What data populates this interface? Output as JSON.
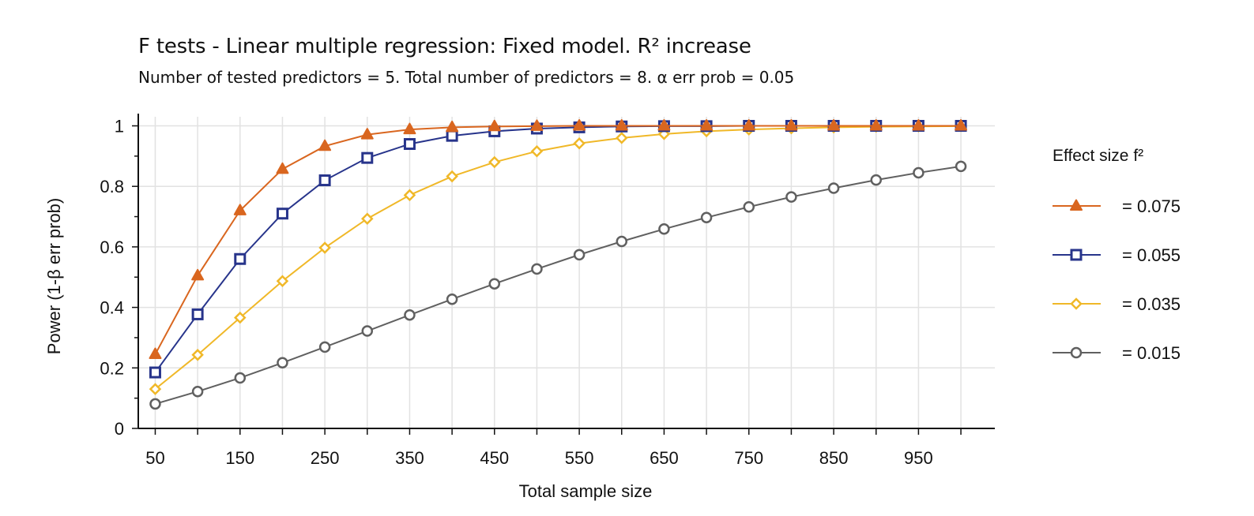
{
  "chart_data": {
    "type": "line",
    "title": "F tests - Linear multiple regression: Fixed model. R² increase",
    "subtitle": "Number of tested predictors = 5. Total number of predictors = 8. α err prob = 0.05",
    "xlabel": "Total sample size",
    "ylabel": "Power (1-β err prob)",
    "xlim": [
      30,
      1040
    ],
    "ylim": [
      0,
      1.03
    ],
    "x_ticks": [
      50,
      150,
      250,
      350,
      450,
      550,
      650,
      750,
      850,
      950
    ],
    "y_ticks": [
      0,
      0.2,
      0.4,
      0.6,
      0.8,
      1
    ],
    "y_tick_labels": [
      "0",
      "0.2",
      "0.4",
      "0.6",
      "0.8",
      "1"
    ],
    "grid": true,
    "legend_title": "Effect size f²",
    "legend_position": "right",
    "x": [
      50,
      100,
      150,
      200,
      250,
      300,
      350,
      400,
      450,
      500,
      550,
      600,
      650,
      700,
      750,
      800,
      850,
      900,
      950,
      1000
    ],
    "series": [
      {
        "name": "= 0.075",
        "color": "#d9661f",
        "marker": "triangle",
        "values": [
          0.245,
          0.505,
          0.72,
          0.857,
          0.933,
          0.971,
          0.988,
          0.995,
          0.998,
          0.999,
          1,
          1,
          1,
          1,
          1,
          1,
          1,
          1,
          1,
          1
        ]
      },
      {
        "name": "= 0.055",
        "color": "#27348b",
        "marker": "square",
        "values": [
          0.185,
          0.377,
          0.56,
          0.71,
          0.82,
          0.894,
          0.94,
          0.967,
          0.982,
          0.991,
          0.995,
          0.998,
          0.999,
          0.999,
          1,
          1,
          1,
          1,
          1,
          1
        ]
      },
      {
        "name": "= 0.035",
        "color": "#f0b828",
        "marker": "diamond",
        "values": [
          0.13,
          0.243,
          0.366,
          0.487,
          0.597,
          0.693,
          0.771,
          0.833,
          0.88,
          0.916,
          0.942,
          0.96,
          0.973,
          0.982,
          0.988,
          0.992,
          0.995,
          0.997,
          0.998,
          0.999
        ]
      },
      {
        "name": "= 0.015",
        "color": "#606060",
        "marker": "circle",
        "values": [
          0.081,
          0.122,
          0.167,
          0.217,
          0.269,
          0.322,
          0.375,
          0.427,
          0.478,
          0.527,
          0.574,
          0.618,
          0.659,
          0.697,
          0.732,
          0.765,
          0.794,
          0.821,
          0.845,
          0.866
        ]
      }
    ]
  }
}
